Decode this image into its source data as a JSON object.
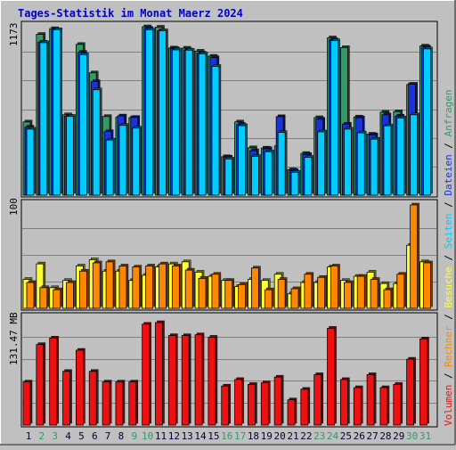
{
  "title": "Tages-Statistik im Monat Maerz 2024",
  "colors": {
    "background": "#c0c0c0",
    "title": "#0000cc",
    "grid": "#808080",
    "hits": "#339966",
    "files": "#1a33dd",
    "pages": "#00ccff",
    "visits": "#ffff33",
    "sites": "#ff8800",
    "kbytes": "#ee1111",
    "weekend": "#339966",
    "weekday": "#000033"
  },
  "legend": {
    "top_right": [
      {
        "text": "Anfragen",
        "color": "#339966"
      },
      {
        "text": " / ",
        "color": "#000000"
      },
      {
        "text": "Dateien",
        "color": "#1a33dd"
      },
      {
        "text": " / ",
        "color": "#000000"
      },
      {
        "text": "Seiten",
        "color": "#00ccff"
      },
      {
        "text": " / ",
        "color": "#000000"
      },
      {
        "text": "Besuche",
        "color": "#ffff33"
      },
      {
        "text": " / ",
        "color": "#000000"
      },
      {
        "text": "Rechner",
        "color": "#ff8800"
      },
      {
        "text": " / ",
        "color": "#000000"
      },
      {
        "text": "Volumen",
        "color": "#ee1111"
      }
    ]
  },
  "chart_data": [
    {
      "type": "bar",
      "ymax_label": "1173",
      "ylim": [
        0,
        1173
      ],
      "categories": [
        "1",
        "2",
        "3",
        "4",
        "5",
        "6",
        "7",
        "8",
        "9",
        "10",
        "11",
        "12",
        "13",
        "14",
        "15",
        "16",
        "17",
        "18",
        "19",
        "20",
        "21",
        "22",
        "23",
        "24",
        "25",
        "26",
        "27",
        "28",
        "29",
        "30",
        "31"
      ],
      "weekend": [
        false,
        true,
        true,
        false,
        false,
        false,
        false,
        false,
        true,
        true,
        false,
        false,
        false,
        false,
        false,
        true,
        true,
        false,
        false,
        false,
        false,
        false,
        true,
        true,
        false,
        false,
        false,
        false,
        false,
        true,
        true
      ],
      "series": [
        {
          "name": "Anfragen",
          "values": [
            510,
            1120,
            1160,
            560,
            1050,
            852,
            548,
            542,
            540,
            1173,
            1170,
            1025,
            1024,
            1003,
            968,
            268,
            510,
            330,
            328,
            343,
            177,
            291,
            540,
            1096,
            1028,
            545,
            425,
            578,
            582,
            770,
            1039
          ]
        },
        {
          "name": "Dateien",
          "values": [
            474,
            1066,
            1153,
            550,
            995,
            791,
            443,
            552,
            542,
            1162,
            1145,
            1020,
            1012,
            990,
            958,
            265,
            493,
            310,
            324,
            547,
            171,
            283,
            529,
            1083,
            495,
            539,
            420,
            560,
            551,
            773,
            1031
          ]
        },
        {
          "name": "Seiten",
          "values": [
            460,
            1062,
            1153,
            549,
            978,
            734,
            384,
            486,
            467,
            1151,
            1145,
            1012,
            1010,
            985,
            897,
            252,
            484,
            270,
            303,
            437,
            159,
            264,
            441,
            1076,
            460,
            434,
            390,
            483,
            538,
            560,
            1019
          ]
        }
      ]
    },
    {
      "type": "bar",
      "ymax_label": "100",
      "ylim": [
        0,
        100
      ],
      "categories": [
        "1",
        "2",
        "3",
        "4",
        "5",
        "6",
        "7",
        "8",
        "9",
        "10",
        "11",
        "12",
        "13",
        "14",
        "15",
        "16",
        "17",
        "18",
        "19",
        "20",
        "21",
        "22",
        "23",
        "24",
        "25",
        "26",
        "27",
        "28",
        "29",
        "30",
        "31"
      ],
      "series": [
        {
          "name": "Besuche",
          "values": [
            28,
            43,
            20,
            27,
            41,
            47,
            36,
            36,
            27,
            32,
            40,
            43,
            45,
            35,
            31,
            27,
            21,
            28,
            27,
            33,
            14,
            25,
            25,
            40,
            27,
            31,
            35,
            24,
            24,
            61,
            45
          ]
        },
        {
          "name": "Rechner",
          "values": [
            25,
            20,
            18,
            25,
            36,
            44,
            45,
            41,
            40,
            41,
            43,
            41,
            37,
            29,
            33,
            27,
            23,
            39,
            18,
            28,
            19,
            33,
            30,
            41,
            25,
            31,
            28,
            18,
            33,
            100,
            44
          ]
        }
      ]
    },
    {
      "type": "bar",
      "ymax_label": "131.47 MB",
      "ylim": [
        0,
        131.47
      ],
      "categories": [
        "1",
        "2",
        "3",
        "4",
        "5",
        "6",
        "7",
        "8",
        "9",
        "10",
        "11",
        "12",
        "13",
        "14",
        "15",
        "16",
        "17",
        "18",
        "19",
        "20",
        "21",
        "22",
        "23",
        "24",
        "25",
        "26",
        "27",
        "28",
        "29",
        "30",
        "31"
      ],
      "series": [
        {
          "name": "Volumen",
          "values": [
            53,
            99,
            107,
            66,
            92,
            66,
            53,
            53,
            53,
            124,
            126,
            110,
            110,
            111,
            108,
            48,
            56,
            50,
            52,
            59,
            31,
            44,
            62,
            119,
            56,
            46,
            62,
            46,
            50,
            81,
            106
          ]
        }
      ]
    }
  ]
}
